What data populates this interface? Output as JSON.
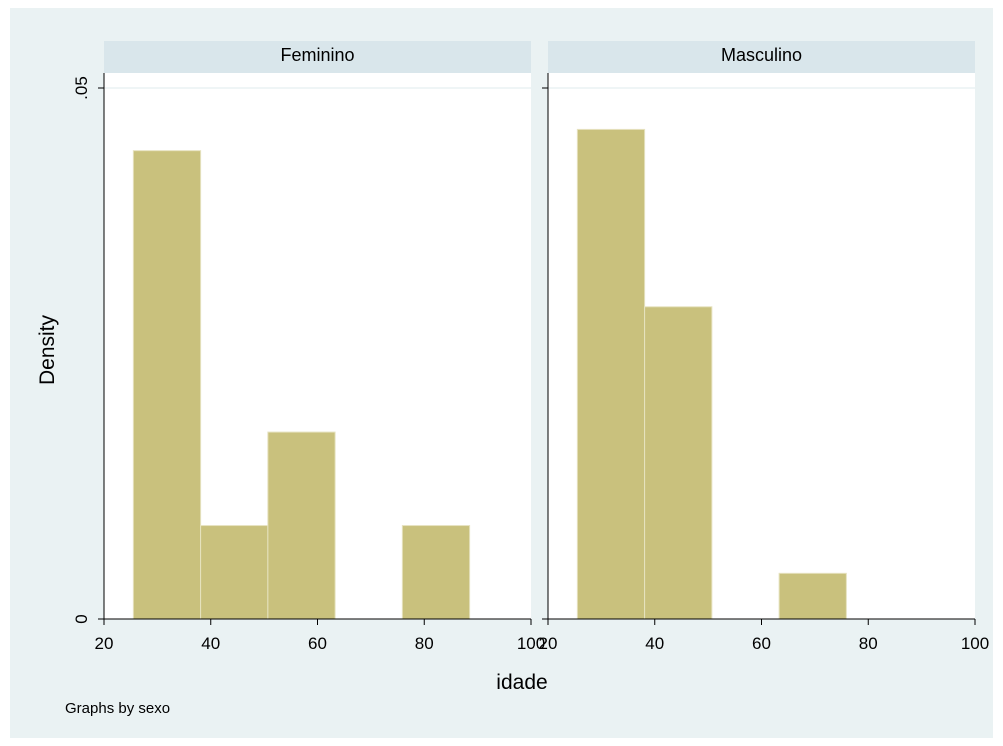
{
  "chart_data": {
    "type": "bar",
    "subtype": "histogram-by-group",
    "xlabel": "idade",
    "ylabel": "Density",
    "note": "Graphs by sexo",
    "xlim": [
      20,
      100
    ],
    "ylim": [
      0,
      0.05
    ],
    "x_ticks": [
      "20",
      "40",
      "60",
      "80",
      "100"
    ],
    "y_ticks": [
      {
        "value": 0,
        "label": "0"
      },
      {
        "value": 0.05,
        "label": ".05"
      }
    ],
    "bar_width": 12.6,
    "bar_color": "#c9c17d",
    "background_color": "#eaf2f3",
    "grid": true,
    "panels": [
      {
        "name": "Feminino",
        "bins": [
          {
            "x0": 25.5,
            "x1": 38.1,
            "density": 0.0441
          },
          {
            "x0": 38.1,
            "x1": 50.7,
            "density": 0.0088
          },
          {
            "x0": 50.7,
            "x1": 63.3,
            "density": 0.0176
          },
          {
            "x0": 63.3,
            "x1": 75.9,
            "density": 0.0
          },
          {
            "x0": 75.9,
            "x1": 88.5,
            "density": 0.0088
          }
        ]
      },
      {
        "name": "Masculino",
        "bins": [
          {
            "x0": 25.5,
            "x1": 38.1,
            "density": 0.0461
          },
          {
            "x0": 38.1,
            "x1": 50.7,
            "density": 0.0294
          },
          {
            "x0": 50.7,
            "x1": 63.3,
            "density": 0.0
          },
          {
            "x0": 63.3,
            "x1": 75.9,
            "density": 0.0043
          }
        ]
      }
    ]
  }
}
